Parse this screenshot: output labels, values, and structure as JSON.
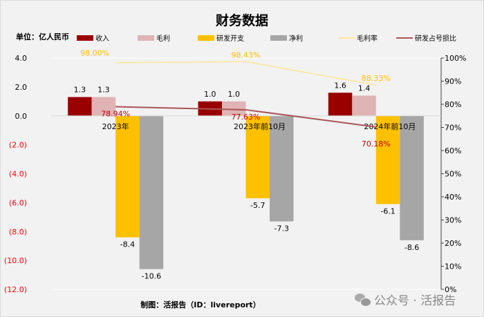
{
  "chart_data": {
    "type": "bar",
    "title": "财务数据",
    "unit_label": "单位：亿人民币",
    "categories": [
      "2023年",
      "2023年前10月",
      "2024年前10月"
    ],
    "series": [
      {
        "name": "收入",
        "type": "bar",
        "axis": "left",
        "color": "#990000",
        "values": [
          1.3,
          1.0,
          1.6
        ],
        "labels": [
          "1.3",
          "1.0",
          "1.6"
        ]
      },
      {
        "name": "毛利",
        "type": "bar",
        "axis": "left",
        "color": "#e0b4b4",
        "values": [
          1.3,
          1.0,
          1.4
        ],
        "labels": [
          "1.3",
          "1.0",
          "1.4"
        ]
      },
      {
        "name": "研发开支",
        "type": "bar",
        "axis": "left",
        "color": "#ffc000",
        "values": [
          -8.4,
          -5.7,
          -6.1
        ],
        "labels": [
          "-8.4",
          "-5.7",
          "-6.1"
        ]
      },
      {
        "name": "净利",
        "type": "bar",
        "axis": "left",
        "color": "#a6a6a6",
        "values": [
          -10.6,
          -7.3,
          -8.6
        ],
        "labels": [
          "-10.6",
          "-7.3",
          "-8.6"
        ]
      },
      {
        "name": "毛利率",
        "type": "line",
        "axis": "right",
        "color": "#ffe699",
        "label_color": "#ffc000",
        "values": [
          98.0,
          98.43,
          88.33
        ],
        "labels": [
          "98.00%",
          "98.43%",
          "88.33%"
        ]
      },
      {
        "name": "研发占号损比",
        "type": "line",
        "axis": "right",
        "color": "#a85454",
        "label_color": "#c00000",
        "values": [
          78.94,
          77.63,
          70.18
        ],
        "labels": [
          "78.94%",
          "77.63%",
          "70.18%"
        ]
      }
    ],
    "y_left": {
      "range": [
        -12,
        4
      ],
      "ticks": [
        4,
        2,
        0,
        -2,
        -4,
        -6,
        -8,
        -10,
        -12
      ],
      "tick_labels": [
        "4.0",
        "2.0",
        "0.0",
        "(2.0)",
        "(4.0)",
        "(6.0)",
        "(8.0)",
        "(10.0)",
        "(12.0)"
      ],
      "negative_color": "#ff0000"
    },
    "y_right": {
      "range": [
        0,
        100
      ],
      "ticks": [
        100,
        90,
        80,
        70,
        60,
        50,
        40,
        30,
        20,
        10,
        0
      ],
      "tick_labels": [
        "100%",
        "90%",
        "80%",
        "70%",
        "60%",
        "50%",
        "40%",
        "30%",
        "20%",
        "10%",
        "0%"
      ]
    },
    "grid": false,
    "legend_position": "top"
  },
  "footer": {
    "credit": "制图：活报告（ID：livereport）",
    "watermark": "公众号 · 活报告"
  }
}
